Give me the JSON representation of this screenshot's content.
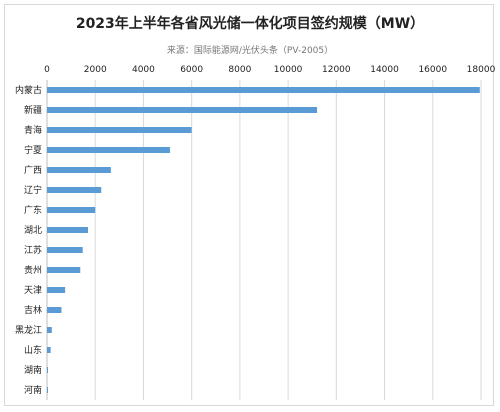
{
  "chart_data": {
    "type": "bar",
    "orientation": "horizontal",
    "title": "2023年上半年各省风光储一体化项目签约规模（MW）",
    "subtitle": "来源：国际能源网/光伏头条（PV-2005）",
    "xlim": [
      0,
      18000
    ],
    "xticks": [
      "0",
      "2000",
      "4000",
      "6000",
      "8000",
      "10000",
      "12000",
      "14000",
      "16000",
      "18000"
    ],
    "xtick_values": [
      0,
      2000,
      4000,
      6000,
      8000,
      10000,
      12000,
      14000,
      16000,
      18000
    ],
    "axis_position": "top",
    "grid": true,
    "bar_color": "#5b9bd5",
    "categories": [
      "内蒙古",
      "新疆",
      "青海",
      "宁夏",
      "广西",
      "辽宁",
      "广东",
      "湖北",
      "江苏",
      "贵州",
      "天津",
      "吉林",
      "黑龙江",
      "山东",
      "湖南",
      "河南"
    ],
    "values": [
      17950,
      11200,
      6000,
      5100,
      2650,
      2250,
      2000,
      1700,
      1480,
      1380,
      750,
      600,
      200,
      150,
      40,
      10
    ]
  }
}
